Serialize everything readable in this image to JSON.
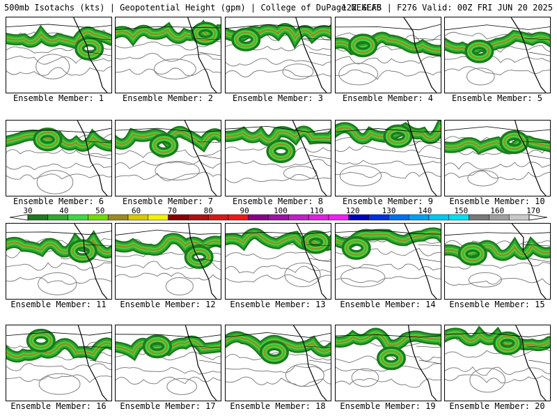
{
  "header": {
    "left": "500mb Isotachs (kts) | Geopotential Height (gpm) | College of DuPage NEXLAB",
    "right": "12Z GEFS | F276 Valid: 00Z FRI JUN 20 2025"
  },
  "panels": [
    {
      "label": "Ensemble Member: 1"
    },
    {
      "label": "Ensemble Member: 2"
    },
    {
      "label": "Ensemble Member: 3"
    },
    {
      "label": "Ensemble Member: 4"
    },
    {
      "label": "Ensemble Member: 5"
    },
    {
      "label": "Ensemble Member: 6"
    },
    {
      "label": "Ensemble Member: 7"
    },
    {
      "label": "Ensemble Member: 8"
    },
    {
      "label": "Ensemble Member: 9"
    },
    {
      "label": "Ensemble Member: 10"
    },
    {
      "label": "Ensemble Member: 11"
    },
    {
      "label": "Ensemble Member: 12"
    },
    {
      "label": "Ensemble Member: 13"
    },
    {
      "label": "Ensemble Member: 14"
    },
    {
      "label": "Ensemble Member: 15"
    },
    {
      "label": "Ensemble Member: 16"
    },
    {
      "label": "Ensemble Member: 17"
    },
    {
      "label": "Ensemble Member: 18"
    },
    {
      "label": "Ensemble Member: 19"
    },
    {
      "label": "Ensemble Member: 20"
    }
  ],
  "colorbar": {
    "ticks": [
      "30",
      "40",
      "50",
      "60",
      "70",
      "80",
      "90",
      "100",
      "110",
      "120",
      "130",
      "140",
      "150",
      "160",
      "170"
    ],
    "colors": [
      "#1e7a1e",
      "#2faa2f",
      "#3fd63f",
      "#6edc00",
      "#9a8a20",
      "#d8c800",
      "#f2f200",
      "#8a0000",
      "#b01010",
      "#d81818",
      "#f01818",
      "#8a008a",
      "#a010a8",
      "#c020c8",
      "#e020e0",
      "#f020f0",
      "#0000c0",
      "#0030e0",
      "#0070f0",
      "#00a0f0",
      "#00c8f0",
      "#00e0f0",
      "#787878",
      "#a0a0a0",
      "#c8c8c8"
    ]
  }
}
